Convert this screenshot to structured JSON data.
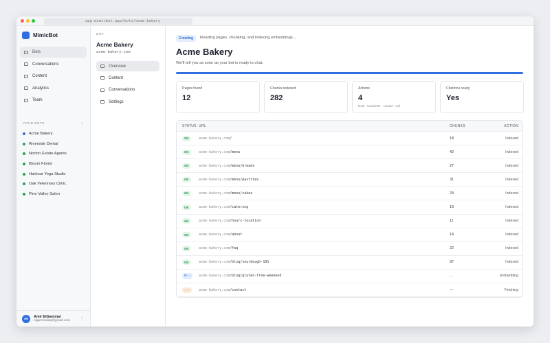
{
  "browser": {
    "url": "app.mimicbot.app/bots/acme-bakery"
  },
  "sidebar": {
    "brand": "MimicBot",
    "nav": [
      {
        "label": "Bots",
        "active": true
      },
      {
        "label": "Conversations"
      },
      {
        "label": "Content"
      },
      {
        "label": "Analytics"
      },
      {
        "label": "Team"
      }
    ],
    "bots_heading": "YOUR BOTS",
    "add": "+",
    "bots": [
      {
        "label": "Acme Bakery",
        "active": true
      },
      {
        "label": "Riverside Dental"
      },
      {
        "label": "Norton Estate Agents"
      },
      {
        "label": "Bloom Florist"
      },
      {
        "label": "Harbour Yoga Studio"
      },
      {
        "label": "Oak Veterinary Clinic"
      },
      {
        "label": "Pine Valley Salon"
      }
    ],
    "user": {
      "initials": "AE",
      "name": "Amir ElGammal",
      "email": "elgammalep@gmail.com",
      "menu": "⋮"
    }
  },
  "bot_panel": {
    "eyebrow": "BOT",
    "name": "Acme Bakery",
    "domain": "acme-bakery.com",
    "nav": [
      {
        "label": "Overview",
        "active": true
      },
      {
        "label": "Content"
      },
      {
        "label": "Conversations"
      },
      {
        "label": "Settings"
      }
    ]
  },
  "main": {
    "badge": "Crawling",
    "status_text": "Reading pages, chunking, and indexing embeddings...",
    "title": "Acme Bakery",
    "subtitle": "We'll tell you as soon as your bot is ready to chat.",
    "stats": [
      {
        "label": "Pages found",
        "value": 12
      },
      {
        "label": "Chunks indexed",
        "value": 282
      },
      {
        "label": "Actions",
        "value": 4,
        "note": "book · newsletter · contact · call"
      },
      {
        "label": "Citations ready",
        "value": "Yes"
      }
    ],
    "table": {
      "headers": [
        "STATUS",
        "URL",
        "CHUNKS",
        "ACTION"
      ],
      "rows": [
        {
          "status": "OK",
          "tone": "ok",
          "domain": "acme-bakery.com",
          "path": "/",
          "chunks": 18,
          "action": "Indexed"
        },
        {
          "status": "OK",
          "tone": "ok",
          "domain": "acme-bakery.com",
          "path": "/menu",
          "chunks": 42,
          "action": "Indexed"
        },
        {
          "status": "OK",
          "tone": "ok",
          "domain": "acme-bakery.com",
          "path": "/menu/breads",
          "chunks": 27,
          "action": "Indexed"
        },
        {
          "status": "OK",
          "tone": "ok",
          "domain": "acme-bakery.com",
          "path": "/menu/pastries",
          "chunks": 31,
          "action": "Indexed"
        },
        {
          "status": "OK",
          "tone": "ok",
          "domain": "acme-bakery.com",
          "path": "/menu/cakes",
          "chunks": 24,
          "action": "Indexed"
        },
        {
          "status": "OK",
          "tone": "ok",
          "domain": "acme-bakery.com",
          "path": "/catering",
          "chunks": 19,
          "action": "Indexed"
        },
        {
          "status": "OK",
          "tone": "ok",
          "domain": "acme-bakery.com",
          "path": "/hours-location",
          "chunks": 11,
          "action": "Indexed"
        },
        {
          "status": "OK",
          "tone": "ok",
          "domain": "acme-bakery.com",
          "path": "/about",
          "chunks": 14,
          "action": "Indexed"
        },
        {
          "status": "OK",
          "tone": "ok",
          "domain": "acme-bakery.com",
          "path": "/faq",
          "chunks": 22,
          "action": "Indexed"
        },
        {
          "status": "OK",
          "tone": "ok",
          "domain": "acme-bakery.com",
          "path": "/blog/sourdough-101",
          "chunks": 37,
          "action": "Indexed"
        },
        {
          "status": "⟳ ···",
          "tone": "info",
          "domain": "acme-bakery.com",
          "path": "/blog/gluten-free-weekend",
          "chunks": "...",
          "action": "Embedding"
        },
        {
          "status": "↓ ···",
          "tone": "warn",
          "domain": "acme-bakery.com",
          "path": "/contact",
          "chunks": "—",
          "action": "Fetching"
        }
      ]
    }
  }
}
